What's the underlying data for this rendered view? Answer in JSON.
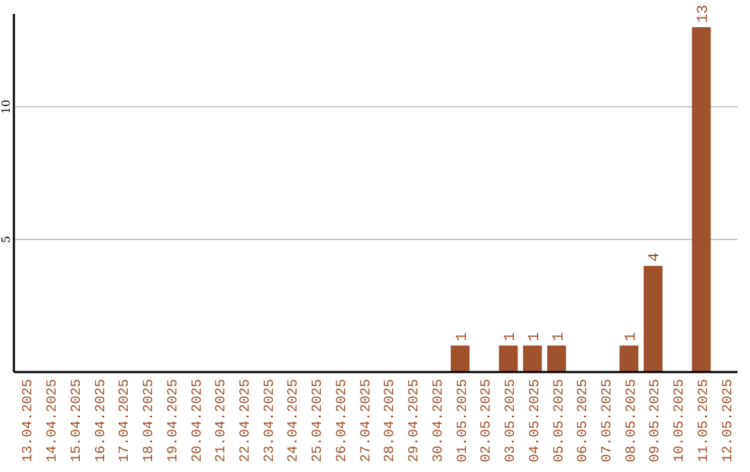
{
  "chart_data": {
    "type": "bar",
    "categories": [
      "13.04.2025",
      "14.04.2025",
      "15.04.2025",
      "16.04.2025",
      "17.04.2025",
      "18.04.2025",
      "19.04.2025",
      "20.04.2025",
      "21.04.2025",
      "22.04.2025",
      "23.04.2025",
      "24.04.2025",
      "25.04.2025",
      "26.04.2025",
      "27.04.2025",
      "28.04.2025",
      "29.04.2025",
      "30.04.2025",
      "01.05.2025",
      "02.05.2025",
      "03.05.2025",
      "04.05.2025",
      "05.05.2025",
      "06.05.2025",
      "07.05.2025",
      "08.05.2025",
      "09.05.2025",
      "10.05.2025",
      "11.05.2025",
      "12.05.2025"
    ],
    "values": [
      0,
      0,
      0,
      0,
      0,
      0,
      0,
      0,
      0,
      0,
      0,
      0,
      0,
      0,
      0,
      0,
      0,
      0,
      1,
      0,
      1,
      1,
      1,
      0,
      0,
      1,
      4,
      0,
      13,
      0
    ],
    "value_labels": [
      null,
      null,
      null,
      null,
      null,
      null,
      null,
      null,
      null,
      null,
      null,
      null,
      null,
      null,
      null,
      null,
      null,
      null,
      "1",
      null,
      "1",
      "1",
      "1",
      null,
      null,
      "1",
      "4",
      null,
      "13",
      null
    ],
    "color": "#a0522d",
    "ylim": [
      0,
      13.5
    ],
    "yticks": [
      5,
      10
    ],
    "grid": "y"
  }
}
